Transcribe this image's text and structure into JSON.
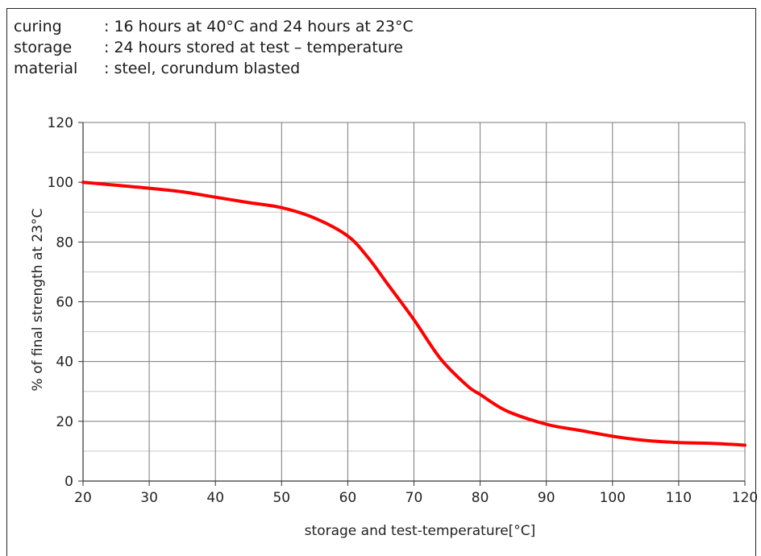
{
  "conditions": [
    {
      "key": "curing",
      "value": ": 16 hours at 40°C and 24 hours at 23°C"
    },
    {
      "key": "storage",
      "value": ": 24 hours stored at test – temperature"
    },
    {
      "key": "material",
      "value": ": steel, corundum blasted"
    }
  ],
  "chart_data": {
    "type": "line",
    "title": "",
    "xlabel": "storage and test-temperature[°C]",
    "ylabel": "% of final strength at  23°C",
    "xlim": [
      20,
      120
    ],
    "ylim": [
      0,
      120
    ],
    "xticks": [
      20,
      30,
      40,
      50,
      60,
      70,
      80,
      90,
      100,
      110,
      120
    ],
    "yticks": [
      0,
      20,
      40,
      60,
      80,
      100,
      120
    ],
    "grid": true,
    "minor_ygrid_step": 10,
    "series": [
      {
        "color": "#ff0000",
        "x": [
          20,
          25,
          30,
          35,
          40,
          45,
          50,
          55,
          60,
          63,
          66,
          70,
          74,
          78,
          80,
          84,
          90,
          95,
          100,
          105,
          110,
          115,
          120
        ],
        "y": [
          100,
          99,
          98,
          96.8,
          95,
          93.2,
          91.5,
          88,
          82,
          75,
          66,
          54,
          41,
          32,
          29,
          23.5,
          19,
          17,
          15,
          13.6,
          12.9,
          12.6,
          12
        ]
      }
    ]
  }
}
